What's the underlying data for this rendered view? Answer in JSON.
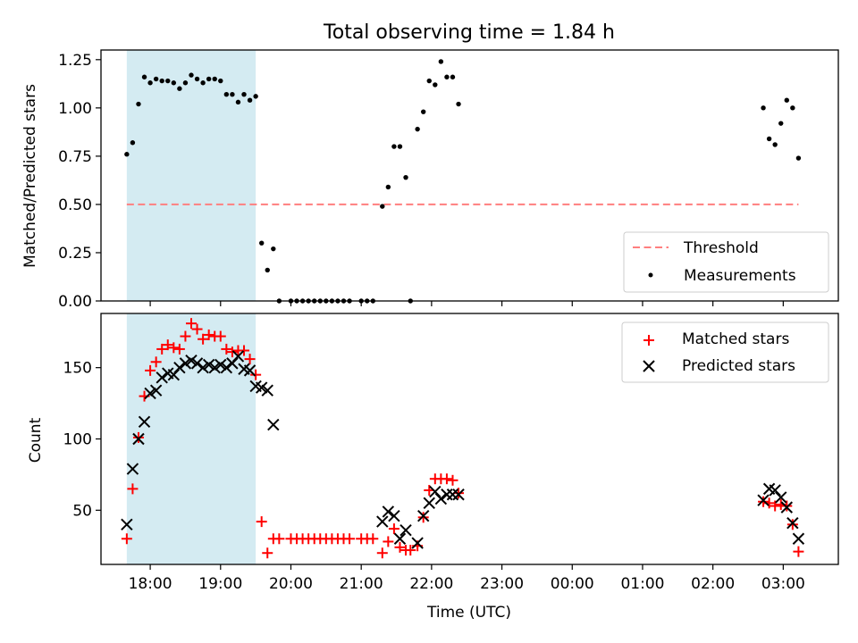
{
  "figure": {
    "title": "Total observing time = 1.84 h",
    "xlabel": "Time (UTC)"
  },
  "chart_data": [
    {
      "type": "scatter",
      "title": "Total observing time = 1.84 h",
      "xlabel": "",
      "ylabel": "Matched/Predicted stars",
      "xlim": [
        "17:18",
        "03:47"
      ],
      "ylim": [
        0,
        1.3
      ],
      "yticks": [
        0.0,
        0.25,
        0.5,
        0.75,
        1.0,
        1.25
      ],
      "ytick_labels": [
        "0.00",
        "0.25",
        "0.50",
        "0.75",
        "1.00",
        "1.25"
      ],
      "xticks": [
        "18:00",
        "19:00",
        "20:00",
        "21:00",
        "22:00",
        "23:00",
        "00:00",
        "01:00",
        "02:00",
        "03:00"
      ],
      "legend": {
        "position": "lower-right",
        "entries": [
          "Threshold",
          "Measurements"
        ]
      },
      "shaded_interval": {
        "start": "17:40",
        "end": "19:30",
        "color": "#add8e6"
      },
      "threshold": {
        "name": "Threshold",
        "value": 0.5,
        "x_range": [
          "17:40",
          "03:13"
        ],
        "color": "#ff7f7f",
        "style": "dashed"
      },
      "series": [
        {
          "name": "Measurements",
          "marker": "dot",
          "color": "#000000",
          "points": [
            [
              "17:40",
              0.76
            ],
            [
              "17:45",
              0.82
            ],
            [
              "17:50",
              1.02
            ],
            [
              "17:55",
              1.16
            ],
            [
              "18:00",
              1.13
            ],
            [
              "18:05",
              1.15
            ],
            [
              "18:10",
              1.14
            ],
            [
              "18:15",
              1.14
            ],
            [
              "18:20",
              1.13
            ],
            [
              "18:25",
              1.1
            ],
            [
              "18:30",
              1.13
            ],
            [
              "18:35",
              1.17
            ],
            [
              "18:40",
              1.15
            ],
            [
              "18:45",
              1.13
            ],
            [
              "18:50",
              1.15
            ],
            [
              "18:55",
              1.15
            ],
            [
              "19:00",
              1.14
            ],
            [
              "19:05",
              1.07
            ],
            [
              "19:10",
              1.07
            ],
            [
              "19:15",
              1.03
            ],
            [
              "19:20",
              1.07
            ],
            [
              "19:25",
              1.04
            ],
            [
              "19:30",
              1.06
            ],
            [
              "19:35",
              0.3
            ],
            [
              "19:40",
              0.16
            ],
            [
              "19:45",
              0.27
            ],
            [
              "19:50",
              0.0
            ],
            [
              "20:00",
              0.0
            ],
            [
              "20:05",
              0.0
            ],
            [
              "20:10",
              0.0
            ],
            [
              "20:15",
              0.0
            ],
            [
              "20:20",
              0.0
            ],
            [
              "20:25",
              0.0
            ],
            [
              "20:30",
              0.0
            ],
            [
              "20:35",
              0.0
            ],
            [
              "20:40",
              0.0
            ],
            [
              "20:45",
              0.0
            ],
            [
              "20:50",
              0.0
            ],
            [
              "21:00",
              0.0
            ],
            [
              "21:05",
              0.0
            ],
            [
              "21:10",
              0.0
            ],
            [
              "21:18",
              0.49
            ],
            [
              "21:23",
              0.59
            ],
            [
              "21:28",
              0.8
            ],
            [
              "21:33",
              0.8
            ],
            [
              "21:38",
              0.64
            ],
            [
              "21:42",
              0.0
            ],
            [
              "21:48",
              0.89
            ],
            [
              "21:53",
              0.98
            ],
            [
              "21:58",
              1.14
            ],
            [
              "22:03",
              1.12
            ],
            [
              "22:08",
              1.24
            ],
            [
              "22:13",
              1.16
            ],
            [
              "22:18",
              1.16
            ],
            [
              "22:23",
              1.02
            ],
            [
              "02:43",
              1.0
            ],
            [
              "02:48",
              0.84
            ],
            [
              "02:53",
              0.81
            ],
            [
              "02:58",
              0.92
            ],
            [
              "03:03",
              1.04
            ],
            [
              "03:08",
              1.0
            ],
            [
              "03:13",
              0.74
            ]
          ]
        }
      ]
    },
    {
      "type": "scatter",
      "title": "",
      "xlabel": "Time (UTC)",
      "ylabel": "Count",
      "xlim": [
        "17:18",
        "03:47"
      ],
      "ylim": [
        12,
        188
      ],
      "yticks": [
        50,
        100,
        150
      ],
      "ytick_labels": [
        "50",
        "100",
        "150"
      ],
      "xticks": [
        "18:00",
        "19:00",
        "20:00",
        "21:00",
        "22:00",
        "23:00",
        "00:00",
        "01:00",
        "02:00",
        "03:00"
      ],
      "xtick_labels": [
        "18:00",
        "19:00",
        "20:00",
        "21:00",
        "22:00",
        "23:00",
        "00:00",
        "01:00",
        "02:00",
        "03:00"
      ],
      "legend": {
        "position": "top-right",
        "entries": [
          "Matched stars",
          "Predicted stars"
        ]
      },
      "shaded_interval": {
        "start": "17:40",
        "end": "19:30",
        "color": "#add8e6"
      },
      "series": [
        {
          "name": "Matched stars",
          "marker": "plus",
          "color": "#ff0000",
          "points": [
            [
              "17:40",
              30
            ],
            [
              "17:45",
              65
            ],
            [
              "17:50",
              101
            ],
            [
              "17:55",
              130
            ],
            [
              "18:00",
              148
            ],
            [
              "18:05",
              154
            ],
            [
              "18:10",
              163
            ],
            [
              "18:15",
              166
            ],
            [
              "18:20",
              164
            ],
            [
              "18:25",
              163
            ],
            [
              "18:30",
              172
            ],
            [
              "18:35",
              181
            ],
            [
              "18:40",
              177
            ],
            [
              "18:45",
              170
            ],
            [
              "18:50",
              173
            ],
            [
              "18:55",
              172
            ],
            [
              "19:00",
              172
            ],
            [
              "19:05",
              163
            ],
            [
              "19:10",
              161
            ],
            [
              "19:15",
              162
            ],
            [
              "19:20",
              162
            ],
            [
              "19:25",
              156
            ],
            [
              "19:30",
              145
            ],
            [
              "19:35",
              42
            ],
            [
              "19:40",
              20
            ],
            [
              "19:45",
              30
            ],
            [
              "19:50",
              30
            ],
            [
              "20:00",
              30
            ],
            [
              "20:05",
              30
            ],
            [
              "20:10",
              30
            ],
            [
              "20:15",
              30
            ],
            [
              "20:20",
              30
            ],
            [
              "20:25",
              30
            ],
            [
              "20:30",
              30
            ],
            [
              "20:35",
              30
            ],
            [
              "20:40",
              30
            ],
            [
              "20:45",
              30
            ],
            [
              "20:50",
              30
            ],
            [
              "21:00",
              30
            ],
            [
              "21:05",
              30
            ],
            [
              "21:10",
              30
            ],
            [
              "21:18",
              20
            ],
            [
              "21:23",
              28
            ],
            [
              "21:28",
              37
            ],
            [
              "21:33",
              24
            ],
            [
              "21:38",
              22
            ],
            [
              "21:42",
              22
            ],
            [
              "21:48",
              25
            ],
            [
              "21:53",
              45
            ],
            [
              "21:58",
              64
            ],
            [
              "22:03",
              72
            ],
            [
              "22:08",
              72
            ],
            [
              "22:13",
              72
            ],
            [
              "22:18",
              71
            ],
            [
              "22:23",
              62
            ],
            [
              "02:43",
              56
            ],
            [
              "02:48",
              55
            ],
            [
              "02:53",
              53
            ],
            [
              "02:58",
              54
            ],
            [
              "03:03",
              53
            ],
            [
              "03:08",
              40
            ],
            [
              "03:13",
              21
            ]
          ]
        },
        {
          "name": "Predicted stars",
          "marker": "x",
          "color": "#000000",
          "points": [
            [
              "17:40",
              40
            ],
            [
              "17:45",
              79
            ],
            [
              "17:50",
              100
            ],
            [
              "17:55",
              112
            ],
            [
              "18:00",
              132
            ],
            [
              "18:05",
              134
            ],
            [
              "18:10",
              143
            ],
            [
              "18:15",
              146
            ],
            [
              "18:20",
              145
            ],
            [
              "18:25",
              150
            ],
            [
              "18:30",
              153
            ],
            [
              "18:35",
              155
            ],
            [
              "18:40",
              153
            ],
            [
              "18:45",
              150
            ],
            [
              "18:50",
              152
            ],
            [
              "18:55",
              150
            ],
            [
              "19:00",
              152
            ],
            [
              "19:05",
              150
            ],
            [
              "19:10",
              153
            ],
            [
              "19:15",
              158
            ],
            [
              "19:20",
              149
            ],
            [
              "19:25",
              148
            ],
            [
              "19:30",
              137
            ],
            [
              "19:35",
              136
            ],
            [
              "19:40",
              134
            ],
            [
              "19:45",
              110
            ],
            [
              "21:18",
              42
            ],
            [
              "21:23",
              49
            ],
            [
              "21:28",
              46
            ],
            [
              "21:33",
              30
            ],
            [
              "21:38",
              36
            ],
            [
              "21:48",
              27
            ],
            [
              "21:53",
              46
            ],
            [
              "21:58",
              55
            ],
            [
              "22:03",
              63
            ],
            [
              "22:08",
              58
            ],
            [
              "22:13",
              61
            ],
            [
              "22:18",
              61
            ],
            [
              "22:23",
              61
            ],
            [
              "02:43",
              57
            ],
            [
              "02:48",
              65
            ],
            [
              "02:53",
              64
            ],
            [
              "02:58",
              59
            ],
            [
              "03:03",
              52
            ],
            [
              "03:08",
              41
            ],
            [
              "03:13",
              30
            ]
          ]
        }
      ]
    }
  ]
}
